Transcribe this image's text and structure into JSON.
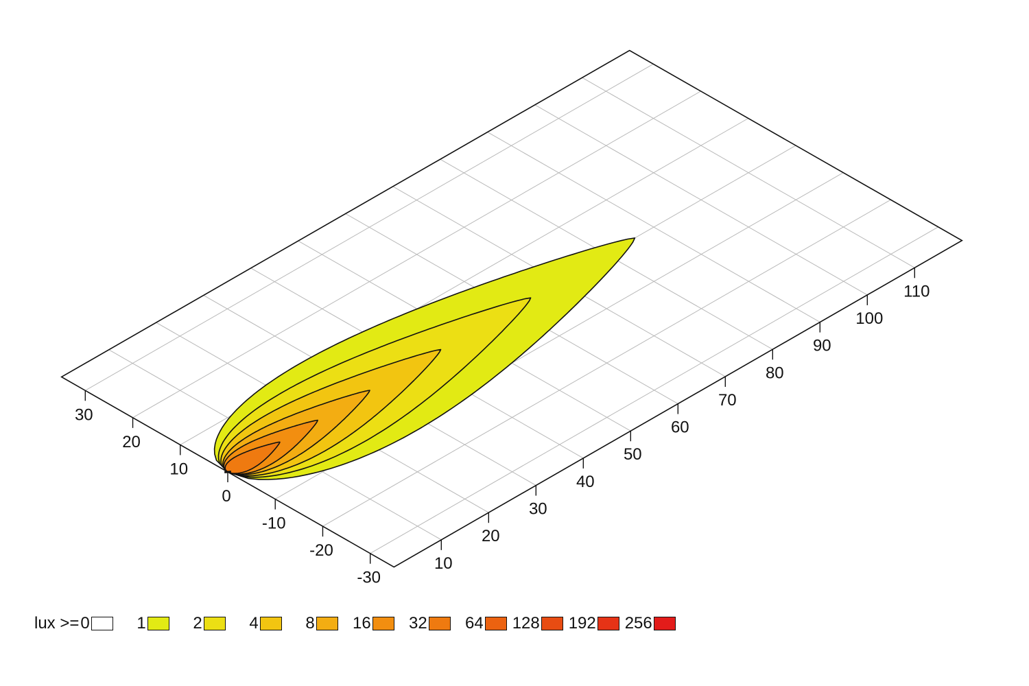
{
  "chart_data": {
    "type": "heatmap",
    "subtype": "3d-isolux-contour",
    "title": "",
    "x_axis": {
      "ticks": [
        10,
        20,
        30,
        40,
        50,
        60,
        70,
        80,
        90,
        100,
        110
      ],
      "range": [
        0,
        120
      ]
    },
    "y_axis": {
      "ticks": [
        30,
        20,
        10,
        0,
        -10,
        -20,
        -30
      ],
      "range": [
        -35,
        35
      ]
    },
    "grid": true,
    "legend": {
      "position": "bottom",
      "prefix": "lux >=",
      "levels": [
        {
          "value": "0",
          "color": "#ffffff"
        },
        {
          "value": "1",
          "color": "#e2ea14"
        },
        {
          "value": "2",
          "color": "#ecdf14"
        },
        {
          "value": "4",
          "color": "#f2c511"
        },
        {
          "value": "8",
          "color": "#f3ad12"
        },
        {
          "value": "16",
          "color": "#f28e10"
        },
        {
          "value": "32",
          "color": "#ef7a10"
        },
        {
          "value": "64",
          "color": "#ec6210"
        },
        {
          "value": "128",
          "color": "#e84c12"
        },
        {
          "value": "192",
          "color": "#e63316"
        },
        {
          "value": "256",
          "color": "#e31c1a"
        }
      ]
    },
    "isolux_contours": [
      {
        "level": 1,
        "x_extent": [
          0,
          86
        ],
        "y_extent": [
          -12.5,
          12.5
        ]
      },
      {
        "level": 2,
        "x_extent": [
          0,
          64
        ],
        "y_extent": [
          -9,
          9
        ]
      },
      {
        "level": 4,
        "x_extent": [
          0,
          45
        ],
        "y_extent": [
          -6.5,
          6.5
        ]
      },
      {
        "level": 8,
        "x_extent": [
          0,
          30
        ],
        "y_extent": [
          -4.5,
          4.5
        ]
      },
      {
        "level": 16,
        "x_extent": [
          0,
          19
        ],
        "y_extent": [
          -3.2,
          3.2
        ]
      },
      {
        "level": 32,
        "x_extent": [
          0,
          11
        ],
        "y_extent": [
          -2,
          2
        ]
      }
    ]
  }
}
